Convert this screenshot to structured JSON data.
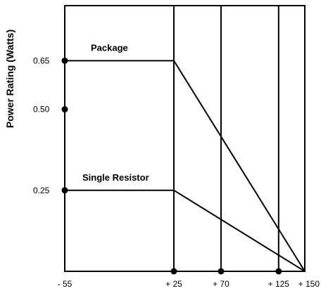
{
  "chart_data": {
    "type": "line",
    "title": "",
    "xlabel": "",
    "ylabel": "Power Rating (Watts)",
    "xlim": [
      -55,
      150
    ],
    "ylim": [
      0,
      0.82
    ],
    "grid": false,
    "x_ticks": [
      -55,
      25,
      70,
      125,
      150
    ],
    "x_tick_labels": [
      "- 55",
      "+ 25",
      "+ 70",
      "+ 125",
      "+ 150"
    ],
    "y_ticks": [
      0.25,
      0.5,
      0.65
    ],
    "y_tick_labels": [
      "0.25",
      "0.50",
      "0.65"
    ],
    "vertical_reference_lines": [
      25,
      70,
      125
    ],
    "series": [
      {
        "name": "Package",
        "x": [
          -55,
          25,
          150
        ],
        "y": [
          0.65,
          0.65,
          0
        ]
      },
      {
        "name": "Single Resistor",
        "x": [
          -55,
          25,
          150
        ],
        "y": [
          0.25,
          0.25,
          0
        ]
      }
    ],
    "markers": [
      {
        "x": -55,
        "y": 0.65
      },
      {
        "x": -55,
        "y": 0.5
      },
      {
        "x": -55,
        "y": 0.25
      },
      {
        "x": 25,
        "y": 0
      },
      {
        "x": 70,
        "y": 0
      },
      {
        "x": 125,
        "y": 0
      }
    ]
  }
}
